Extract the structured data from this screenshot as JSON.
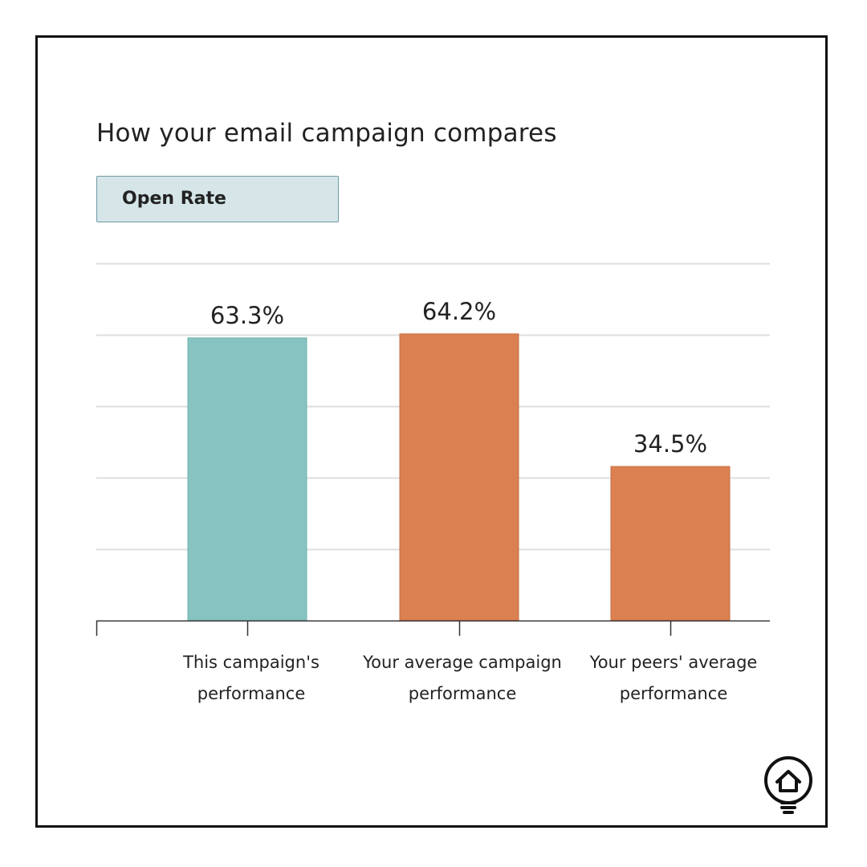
{
  "header": {
    "title": "How your email campaign compares",
    "metric_tab_label": "Open Rate"
  },
  "colors": {
    "this_campaign": "#86c3c1",
    "this_campaign_stroke": "#6fb0ae",
    "average": "#db8050",
    "average_stroke": "#c66e40",
    "gridline": "#dedede",
    "axis": "#333333",
    "text": "#222222"
  },
  "chart_data": {
    "type": "bar",
    "title": "How your email campaign compares",
    "metric": "Open Rate",
    "categories": [
      [
        "This campaign's",
        "performance"
      ],
      [
        "Your average campaign",
        "performance"
      ],
      [
        "Your peers' average",
        "performance"
      ]
    ],
    "values": [
      63.3,
      64.2,
      34.5
    ],
    "value_labels": [
      "63.3%",
      "64.2%",
      "34.5%"
    ],
    "series_colors": [
      "this_campaign",
      "average",
      "average"
    ],
    "ylim": [
      0,
      80
    ],
    "gridline_step": 16,
    "xlabel": "",
    "ylabel": "",
    "grid": true
  },
  "logo": {
    "icon": "lightbulb-house-icon"
  }
}
